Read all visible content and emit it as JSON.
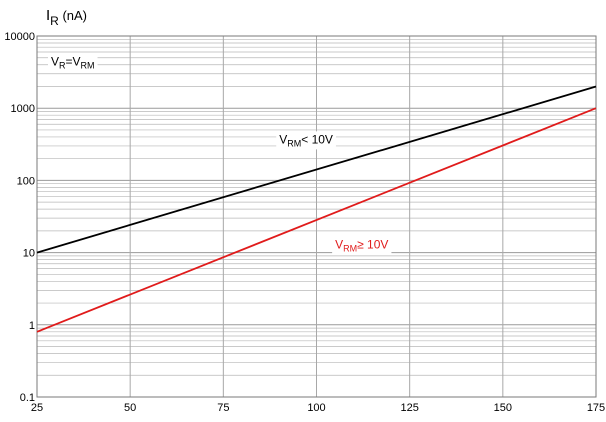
{
  "chart_data": {
    "type": "line",
    "ylabel": {
      "main": "I",
      "sub": "R",
      "unit": " (nA)"
    },
    "xlabel": "",
    "xlim": [
      25,
      175
    ],
    "ylim": [
      0.1,
      10000
    ],
    "y_scale": "log",
    "grid": true,
    "x_ticks": [
      "25",
      "50",
      "75",
      "100",
      "125",
      "150",
      "175"
    ],
    "y_ticks": [
      "0.1",
      "1",
      "10",
      "100",
      "1000",
      "10000"
    ],
    "series": [
      {
        "color": "#000000",
        "x": [
          25,
          175
        ],
        "values": [
          10,
          2000
        ]
      },
      {
        "color": "#e01b1b",
        "x": [
          25,
          175
        ],
        "values": [
          0.8,
          1000
        ]
      }
    ],
    "annotations": [
      {
        "parts": [
          {
            "t": "V",
            "sub": false
          },
          {
            "t": "R",
            "sub": true
          },
          {
            "t": "=V",
            "sub": false
          },
          {
            "t": "RM",
            "sub": true
          }
        ],
        "x": 25,
        "y": 4400,
        "color": "#000000",
        "box": true
      },
      {
        "parts": [
          {
            "t": "V",
            "sub": false
          },
          {
            "t": "RM",
            "sub": true
          },
          {
            "t": "< 10V",
            "sub": false
          }
        ],
        "x": 90,
        "y": 370,
        "color": "#000000",
        "box": false
      },
      {
        "parts": [
          {
            "t": "V",
            "sub": false
          },
          {
            "t": "RM",
            "sub": true
          },
          {
            "t": "≥ 10V",
            "sub": false
          }
        ],
        "x": 105,
        "y": 13,
        "color": "#e01b1b",
        "box": false
      }
    ]
  }
}
